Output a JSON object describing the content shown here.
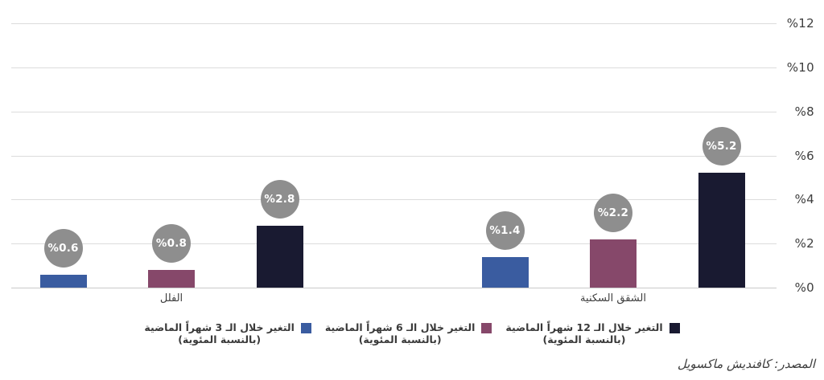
{
  "source": "المصدر: كافنديش ماكسويل",
  "colors": {
    "series_3m": "#3a5ca0",
    "series_6m": "#86486a",
    "series_12m": "#191a31",
    "label_circle": "#8e8e8e",
    "grid": "#dcdcdc",
    "baseline": "#c9c9c9",
    "text": "#3d3d3d"
  },
  "legend": {
    "items": [
      {
        "line1": "التغير خلال الـ 12 شهراً الماضية",
        "line2": "(بالنسبة المئوية)",
        "color": "#191a31"
      },
      {
        "line1": "التغير خلال الـ 6 شهراً الماضية",
        "line2": "(بالنسبة المئوية)",
        "color": "#86486a"
      },
      {
        "line1": "التغير خلال الـ 3 شهراً الماضية",
        "line2": "(بالنسبة المئوية)",
        "color": "#3a5ca0"
      }
    ]
  },
  "chart_data": {
    "type": "bar",
    "categories": [
      "الفلل",
      "الشقق السكنية"
    ],
    "series": [
      {
        "name": "التغير خلال الـ 3 شهراً الماضية (بالنسبة المئوية)",
        "color": "#3a5ca0",
        "values": [
          0.6,
          1.4
        ],
        "labels": [
          "%0.6",
          "%1.4"
        ]
      },
      {
        "name": "التغير خلال الـ 6 شهراً الماضية (بالنسبة المئوية)",
        "color": "#86486a",
        "values": [
          0.8,
          2.2
        ],
        "labels": [
          "%0.8",
          "%2.2"
        ]
      },
      {
        "name": "التغير خلال الـ 12 شهراً الماضية (بالنسبة المئوية)",
        "color": "#191a31",
        "values": [
          2.8,
          5.2
        ],
        "labels": [
          "%2.8",
          "%5.2"
        ]
      }
    ],
    "ylim": [
      0,
      12
    ],
    "yticks": [
      {
        "label": "%0",
        "value": 0
      },
      {
        "label": "%2",
        "value": 2
      },
      {
        "label": "%4",
        "value": 4
      },
      {
        "label": "%6",
        "value": 6
      },
      {
        "label": "%8",
        "value": 8
      },
      {
        "label": "%10",
        "value": 10
      },
      {
        "label": "%12",
        "value": 12
      }
    ],
    "grid": true,
    "legend_position": "bottom",
    "data_label_style": "gray-circle"
  }
}
